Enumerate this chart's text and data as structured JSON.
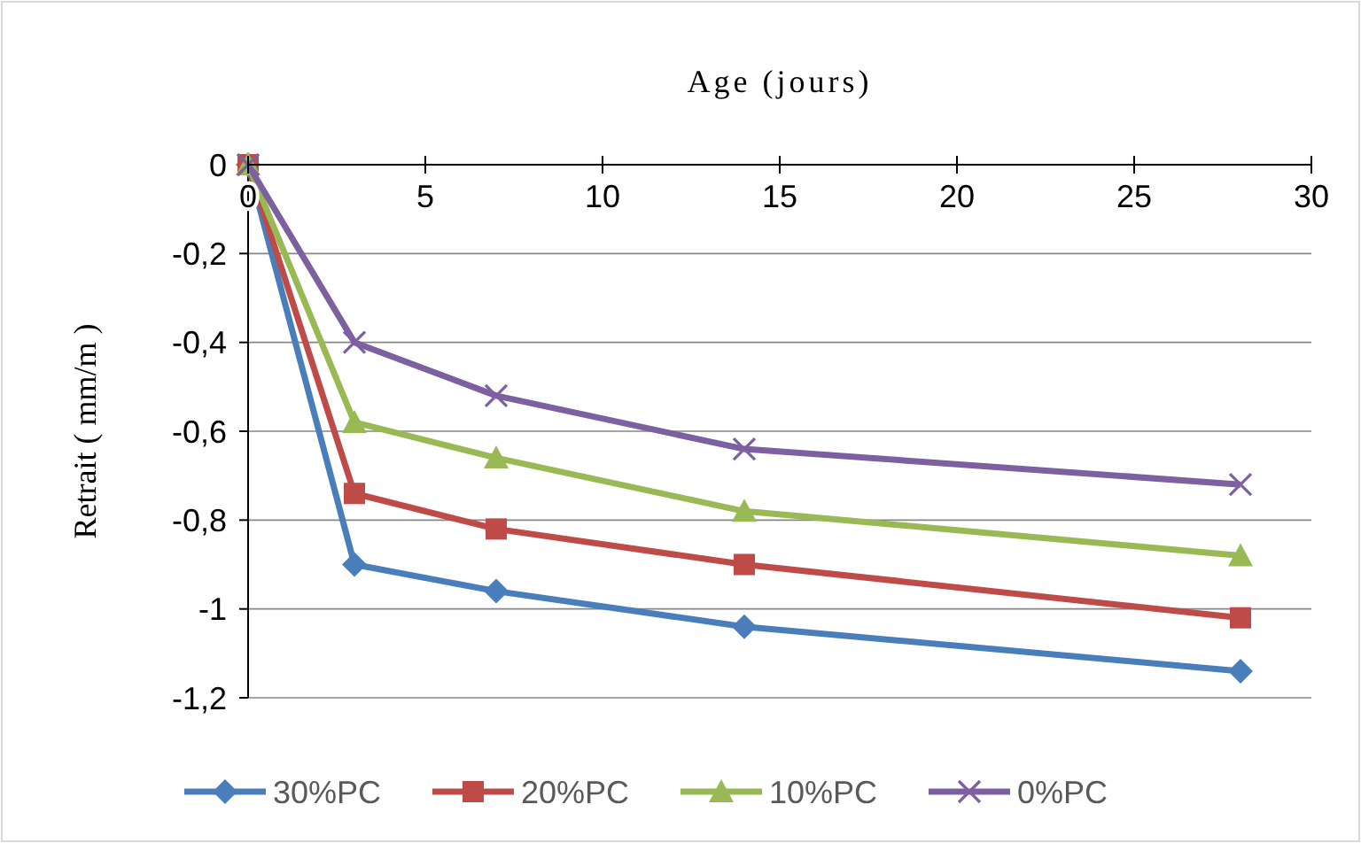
{
  "chart_data": {
    "type": "line",
    "xlabel": "Age (jours)",
    "ylabel": "Retrait ( mm/m )",
    "xlim": [
      0,
      30
    ],
    "xticks": [
      0,
      5,
      10,
      15,
      20,
      25,
      30
    ],
    "ylim": [
      -1.2,
      0
    ],
    "yticks": [
      {
        "value": -1.2,
        "label": "-1,2"
      },
      {
        "value": -1,
        "label": "-1"
      },
      {
        "value": -0.8,
        "label": "-0,8"
      },
      {
        "value": -0.6,
        "label": "-0,6"
      },
      {
        "value": -0.4,
        "label": "-0,4"
      },
      {
        "value": -0.2,
        "label": "-0,2"
      },
      0
    ],
    "grid": "y",
    "legend": "bottom",
    "line_style": "solid",
    "x": [
      0,
      3,
      7,
      14,
      28
    ],
    "series": [
      {
        "name": "30%PC",
        "color": "#4a7ebb",
        "marker": "diamond",
        "values": [
          0,
          -0.9,
          -0.96,
          -1.04,
          -1.14
        ]
      },
      {
        "name": "20%PC",
        "color": "#be4b48",
        "marker": "square",
        "values": [
          0,
          -0.74,
          -0.82,
          -0.9,
          -1.02
        ]
      },
      {
        "name": "10%PC",
        "color": "#98b954",
        "marker": "triangle",
        "values": [
          0,
          -0.58,
          -0.66,
          -0.78,
          -0.88
        ]
      },
      {
        "name": "0%PC",
        "color": "#7d60a0",
        "marker": "cross",
        "values": [
          0,
          -0.4,
          -0.52,
          -0.64,
          -0.72
        ]
      }
    ]
  }
}
